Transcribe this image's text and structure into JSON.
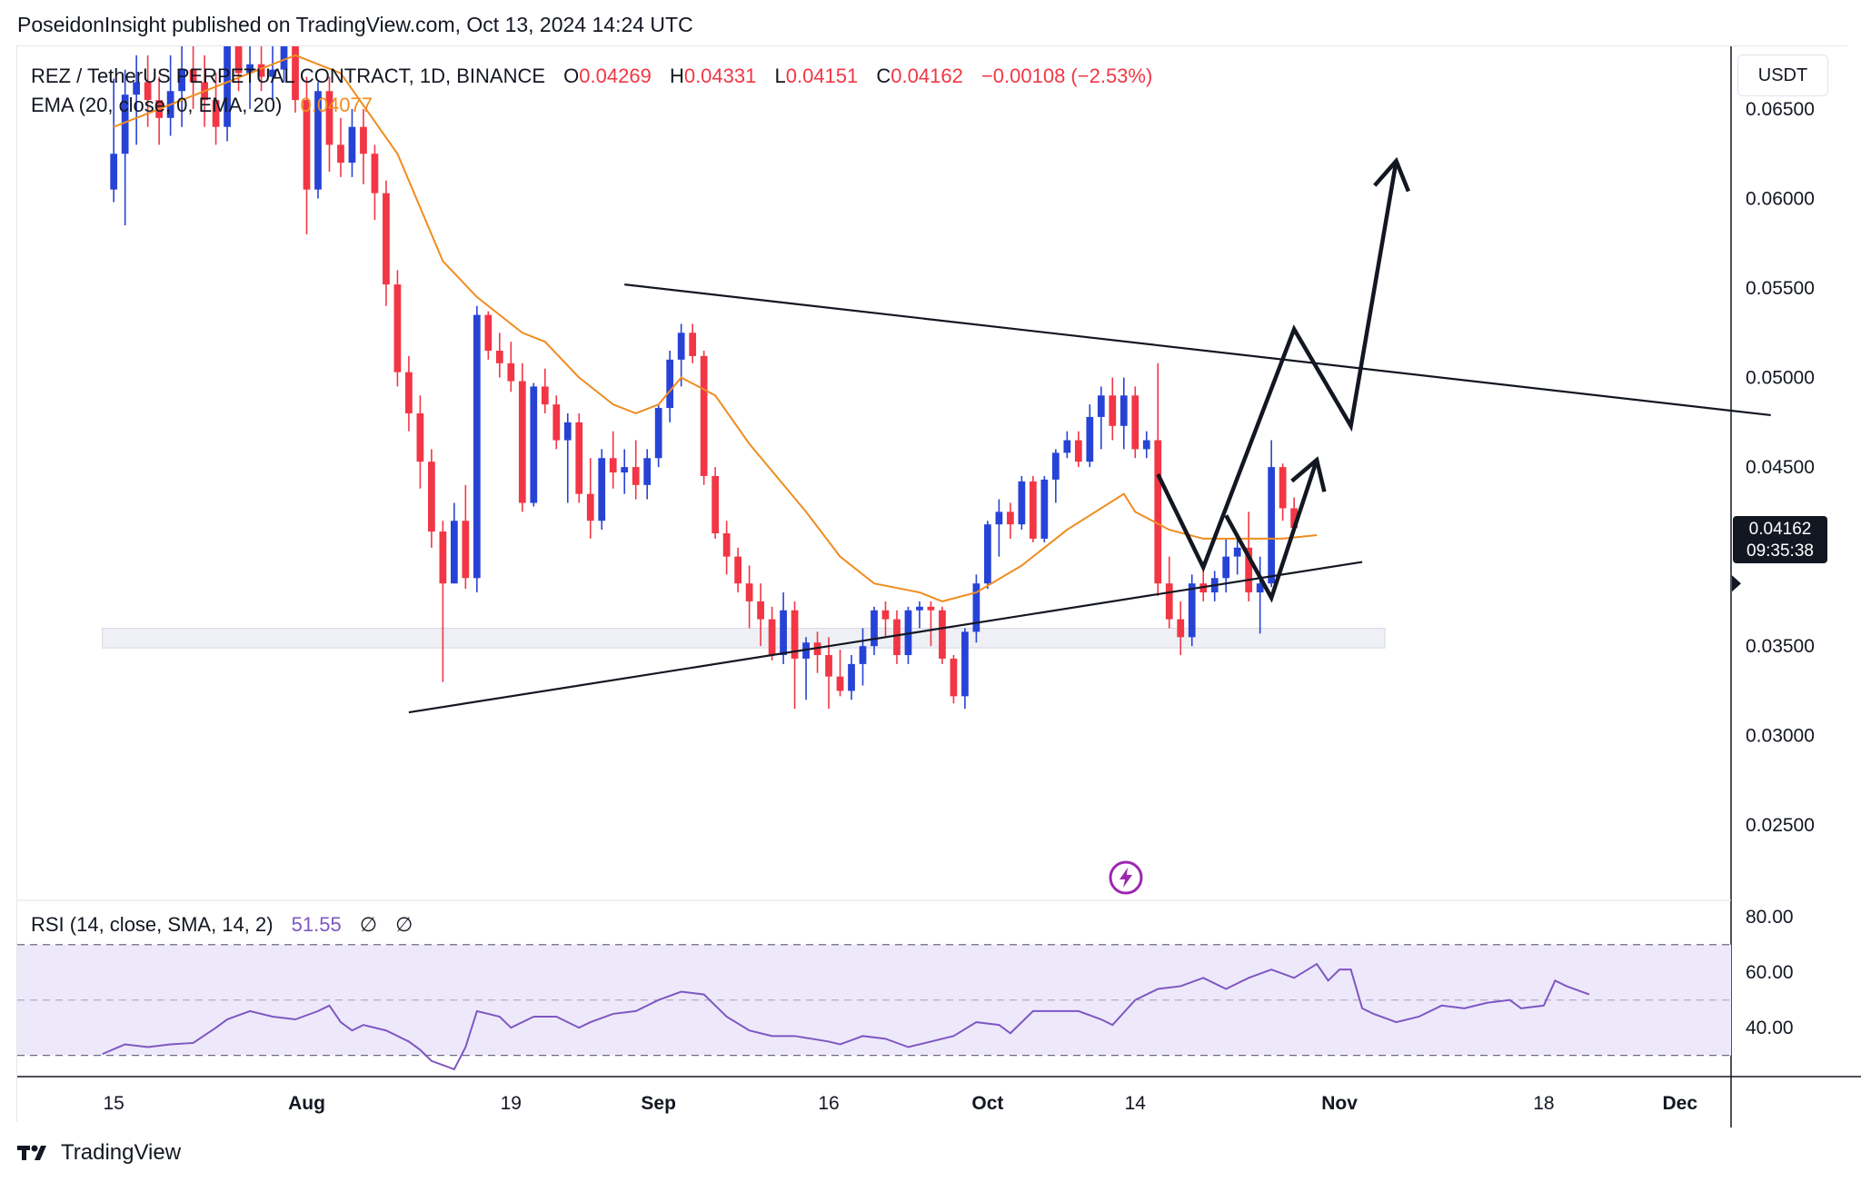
{
  "header": {
    "publisher": "PoseidonInsight published on TradingView.com, Oct 13, 2024 14:24 UTC"
  },
  "legend": {
    "symbol": "REZ / TetherUS PERPETUAL CONTRACT, 1D, BINANCE",
    "open_label": "O",
    "open": "0.04269",
    "high_label": "H",
    "high": "0.04331",
    "low_label": "L",
    "low": "0.04151",
    "close_label": "C",
    "close": "0.04162",
    "change": "−0.00108 (−2.53%)",
    "ema_label": "EMA (20, close, 0, EMA, 20)",
    "ema_value": "0.04077"
  },
  "rsi_legend": {
    "label": "RSI (14, close, SMA, 14, 2)",
    "value": "51.55",
    "extra1": "∅",
    "extra2": "∅"
  },
  "currency": "USDT",
  "price_tag": {
    "price": "0.04162",
    "countdown": "09:35:38"
  },
  "footer": {
    "brand": "TradingView"
  },
  "colors": {
    "up": "#2743d6",
    "down": "#f23645",
    "ema": "#f08c1f",
    "rsi": "#7e57c2",
    "rsi_band": "#ede9fb"
  },
  "icons": {
    "bolt": "lightning-bolt-icon",
    "logo": "tradingview-logo-icon"
  },
  "chart_data": {
    "type": "candlestick",
    "symbol": "REZ / TetherUS PERPETUAL CONTRACT",
    "interval": "1D",
    "exchange": "BINANCE",
    "price_axis": {
      "ticks": [
        "0.06500",
        "0.06000",
        "0.05500",
        "0.05000",
        "0.04500",
        "0.03500",
        "0.03000",
        "0.02500"
      ],
      "range": [
        0.0208,
        0.0685
      ]
    },
    "time_axis": {
      "ticks": [
        "15",
        "Aug",
        "19",
        "Sep",
        "16",
        "Oct",
        "14",
        "Nov",
        "18",
        "Dec"
      ],
      "positions": [
        0,
        17,
        35,
        48,
        63,
        77,
        90,
        108,
        126,
        138
      ],
      "x_range": [
        -8.5,
        142.5
      ]
    },
    "rsi_axis": {
      "ticks": [
        "80.00",
        "60.00",
        "40.00"
      ],
      "range": [
        23,
        85
      ],
      "bands": [
        30,
        70
      ],
      "mid": 50
    },
    "candles": [
      [
        0.0605,
        0.0667,
        0.0598,
        0.0625
      ],
      [
        0.0625,
        0.0672,
        0.0585,
        0.0658
      ],
      [
        0.0658,
        0.068,
        0.063,
        0.0665
      ],
      [
        0.0665,
        0.068,
        0.064,
        0.0655
      ],
      [
        0.0655,
        0.0668,
        0.063,
        0.0645
      ],
      [
        0.0645,
        0.068,
        0.0635,
        0.066
      ],
      [
        0.066,
        0.069,
        0.064,
        0.0672
      ],
      [
        0.0672,
        0.0685,
        0.065,
        0.0665
      ],
      [
        0.0665,
        0.068,
        0.064,
        0.0655
      ],
      [
        0.0655,
        0.067,
        0.063,
        0.064
      ],
      [
        0.064,
        0.069,
        0.0632,
        0.0685
      ],
      [
        0.0685,
        0.07,
        0.066,
        0.067
      ],
      [
        0.067,
        0.0688,
        0.065,
        0.0675
      ],
      [
        0.0675,
        0.069,
        0.066,
        0.0668
      ],
      [
        0.0668,
        0.069,
        0.0655,
        0.0672
      ],
      [
        0.0672,
        0.069,
        0.0665,
        0.0685
      ],
      [
        0.0685,
        0.0695,
        0.0648,
        0.0655
      ],
      [
        0.0655,
        0.0668,
        0.058,
        0.0605
      ],
      [
        0.0605,
        0.0665,
        0.06,
        0.066
      ],
      [
        0.066,
        0.0668,
        0.0615,
        0.063
      ],
      [
        0.063,
        0.0645,
        0.0612,
        0.062
      ],
      [
        0.062,
        0.065,
        0.0612,
        0.064
      ],
      [
        0.064,
        0.065,
        0.0608,
        0.0625
      ],
      [
        0.0625,
        0.063,
        0.0588,
        0.0603
      ],
      [
        0.0603,
        0.061,
        0.054,
        0.0552
      ],
      [
        0.0552,
        0.056,
        0.0495,
        0.0503
      ],
      [
        0.0503,
        0.0512,
        0.047,
        0.048
      ],
      [
        0.048,
        0.049,
        0.0438,
        0.0453
      ],
      [
        0.0453,
        0.046,
        0.0405,
        0.0414
      ],
      [
        0.0414,
        0.042,
        0.033,
        0.0385
      ],
      [
        0.0385,
        0.043,
        0.0385,
        0.042
      ],
      [
        0.042,
        0.044,
        0.0382,
        0.0388
      ],
      [
        0.0388,
        0.054,
        0.038,
        0.0535
      ],
      [
        0.0535,
        0.0537,
        0.051,
        0.0515
      ],
      [
        0.0515,
        0.0525,
        0.05,
        0.0508
      ],
      [
        0.0508,
        0.052,
        0.0492,
        0.0498
      ],
      [
        0.0498,
        0.0508,
        0.0425,
        0.043
      ],
      [
        0.043,
        0.0497,
        0.0428,
        0.0495
      ],
      [
        0.0495,
        0.0505,
        0.048,
        0.0485
      ],
      [
        0.0485,
        0.049,
        0.046,
        0.0465
      ],
      [
        0.0465,
        0.048,
        0.043,
        0.0475
      ],
      [
        0.0475,
        0.048,
        0.043,
        0.0435
      ],
      [
        0.0435,
        0.0455,
        0.041,
        0.042
      ],
      [
        0.042,
        0.046,
        0.0415,
        0.0455
      ],
      [
        0.0455,
        0.047,
        0.0438,
        0.0447
      ],
      [
        0.0447,
        0.046,
        0.0435,
        0.045
      ],
      [
        0.045,
        0.0465,
        0.0432,
        0.044
      ],
      [
        0.044,
        0.046,
        0.0432,
        0.0455
      ],
      [
        0.0455,
        0.0485,
        0.045,
        0.0483
      ],
      [
        0.0483,
        0.0515,
        0.0475,
        0.051
      ],
      [
        0.051,
        0.053,
        0.0495,
        0.0525
      ],
      [
        0.0525,
        0.053,
        0.0508,
        0.0512
      ],
      [
        0.0512,
        0.0515,
        0.044,
        0.0445
      ],
      [
        0.0445,
        0.045,
        0.041,
        0.0413
      ],
      [
        0.0413,
        0.042,
        0.039,
        0.04
      ],
      [
        0.04,
        0.0405,
        0.038,
        0.0385
      ],
      [
        0.0385,
        0.0395,
        0.036,
        0.0375
      ],
      [
        0.0375,
        0.0385,
        0.035,
        0.0365
      ],
      [
        0.0365,
        0.0372,
        0.0342,
        0.0345
      ],
      [
        0.0345,
        0.038,
        0.034,
        0.037
      ],
      [
        0.037,
        0.0375,
        0.0315,
        0.0343
      ],
      [
        0.0343,
        0.0355,
        0.032,
        0.0352
      ],
      [
        0.0352,
        0.0358,
        0.0335,
        0.0345
      ],
      [
        0.0345,
        0.0355,
        0.0315,
        0.0333
      ],
      [
        0.0333,
        0.0348,
        0.0322,
        0.0325
      ],
      [
        0.0325,
        0.0345,
        0.032,
        0.034
      ],
      [
        0.034,
        0.036,
        0.0328,
        0.035
      ],
      [
        0.035,
        0.0372,
        0.0345,
        0.037
      ],
      [
        0.037,
        0.0375,
        0.0355,
        0.0365
      ],
      [
        0.0365,
        0.037,
        0.034,
        0.0345
      ],
      [
        0.0345,
        0.0372,
        0.034,
        0.037
      ],
      [
        0.037,
        0.0375,
        0.036,
        0.0372
      ],
      [
        0.0372,
        0.0375,
        0.035,
        0.037
      ],
      [
        0.037,
        0.0372,
        0.034,
        0.0343
      ],
      [
        0.0343,
        0.0345,
        0.0318,
        0.0322
      ],
      [
        0.0322,
        0.036,
        0.0315,
        0.0358
      ],
      [
        0.0358,
        0.039,
        0.0352,
        0.0385
      ],
      [
        0.0385,
        0.042,
        0.0382,
        0.0418
      ],
      [
        0.0418,
        0.0432,
        0.04,
        0.0425
      ],
      [
        0.0425,
        0.043,
        0.041,
        0.0418
      ],
      [
        0.0418,
        0.0445,
        0.0415,
        0.0442
      ],
      [
        0.0442,
        0.0445,
        0.0408,
        0.041
      ],
      [
        0.041,
        0.0445,
        0.0408,
        0.0443
      ],
      [
        0.0443,
        0.046,
        0.043,
        0.0458
      ],
      [
        0.0458,
        0.047,
        0.0455,
        0.0465
      ],
      [
        0.0465,
        0.047,
        0.045,
        0.0453
      ],
      [
        0.0453,
        0.0485,
        0.045,
        0.0478
      ],
      [
        0.0478,
        0.0495,
        0.046,
        0.049
      ],
      [
        0.049,
        0.05,
        0.0465,
        0.0473
      ],
      [
        0.0473,
        0.05,
        0.046,
        0.049
      ],
      [
        0.049,
        0.0495,
        0.0455,
        0.046
      ],
      [
        0.046,
        0.047,
        0.0455,
        0.0465
      ],
      [
        0.0465,
        0.0508,
        0.0378,
        0.0385
      ],
      [
        0.0385,
        0.04,
        0.036,
        0.0365
      ],
      [
        0.0365,
        0.0375,
        0.0345,
        0.0355
      ],
      [
        0.0355,
        0.039,
        0.035,
        0.0385
      ],
      [
        0.0385,
        0.0395,
        0.0375,
        0.038
      ],
      [
        0.038,
        0.0392,
        0.0375,
        0.0388
      ],
      [
        0.0388,
        0.041,
        0.038,
        0.04
      ],
      [
        0.04,
        0.041,
        0.039,
        0.0405
      ],
      [
        0.0405,
        0.0425,
        0.0375,
        0.038
      ],
      [
        0.038,
        0.04,
        0.0357,
        0.0385
      ],
      [
        0.0385,
        0.0465,
        0.0383,
        0.045
      ],
      [
        0.045,
        0.0452,
        0.042,
        0.0427
      ],
      [
        0.0427,
        0.0433,
        0.0415,
        0.0416
      ]
    ],
    "ema20": [
      [
        0,
        0.064
      ],
      [
        10,
        0.0665
      ],
      [
        16,
        0.068
      ],
      [
        20,
        0.067
      ],
      [
        25,
        0.0625
      ],
      [
        29,
        0.0565
      ],
      [
        32,
        0.0545
      ],
      [
        36,
        0.0525
      ],
      [
        38,
        0.052
      ],
      [
        41,
        0.05
      ],
      [
        44,
        0.0485
      ],
      [
        46,
        0.048
      ],
      [
        48,
        0.0485
      ],
      [
        50,
        0.05
      ],
      [
        53,
        0.049
      ],
      [
        56,
        0.0463
      ],
      [
        61,
        0.0425
      ],
      [
        64,
        0.04
      ],
      [
        67,
        0.0385
      ],
      [
        71,
        0.038
      ],
      [
        73,
        0.0375
      ],
      [
        76,
        0.038
      ],
      [
        80,
        0.0395
      ],
      [
        84,
        0.0415
      ],
      [
        89,
        0.0435
      ],
      [
        90,
        0.0425
      ],
      [
        93,
        0.0415
      ],
      [
        96,
        0.041
      ],
      [
        99,
        0.041
      ],
      [
        103,
        0.041
      ],
      [
        106,
        0.0412
      ]
    ],
    "rsi": [
      [
        -1,
        30.5
      ],
      [
        1,
        34
      ],
      [
        3,
        33
      ],
      [
        5,
        34
      ],
      [
        7,
        34.5
      ],
      [
        9,
        40
      ],
      [
        10,
        43
      ],
      [
        12,
        46
      ],
      [
        14,
        44
      ],
      [
        16,
        43
      ],
      [
        18,
        46
      ],
      [
        19,
        48
      ],
      [
        20,
        42
      ],
      [
        21,
        39
      ],
      [
        22,
        41
      ],
      [
        24,
        39
      ],
      [
        26,
        35
      ],
      [
        27,
        32
      ],
      [
        28,
        28
      ],
      [
        30,
        25
      ],
      [
        31,
        33
      ],
      [
        32,
        46
      ],
      [
        34,
        44
      ],
      [
        35,
        40
      ],
      [
        37,
        44
      ],
      [
        39,
        44
      ],
      [
        41,
        40
      ],
      [
        42,
        42
      ],
      [
        44,
        45
      ],
      [
        46,
        46
      ],
      [
        48,
        50
      ],
      [
        50,
        53
      ],
      [
        52,
        52
      ],
      [
        54,
        44
      ],
      [
        56,
        39
      ],
      [
        58,
        37
      ],
      [
        60,
        37
      ],
      [
        63,
        35
      ],
      [
        64,
        34
      ],
      [
        66,
        37
      ],
      [
        68,
        36
      ],
      [
        70,
        33
      ],
      [
        72,
        35
      ],
      [
        74,
        37
      ],
      [
        76,
        42
      ],
      [
        78,
        41
      ],
      [
        79,
        38
      ],
      [
        81,
        46
      ],
      [
        83,
        46
      ],
      [
        85,
        46
      ],
      [
        87,
        43
      ],
      [
        88,
        41
      ],
      [
        90,
        50
      ],
      [
        92,
        54
      ],
      [
        94,
        55
      ],
      [
        96,
        58
      ],
      [
        98,
        54
      ],
      [
        100,
        58
      ],
      [
        102,
        61
      ],
      [
        104,
        58
      ],
      [
        106,
        63
      ],
      [
        107,
        57
      ],
      [
        108,
        61
      ],
      [
        109,
        61
      ],
      [
        110,
        47
      ],
      [
        111,
        45
      ],
      [
        113,
        42
      ],
      [
        115,
        44
      ],
      [
        117,
        48
      ],
      [
        119,
        47
      ],
      [
        121,
        49
      ],
      [
        123,
        50
      ],
      [
        124,
        47
      ],
      [
        126,
        48
      ],
      [
        127,
        57
      ],
      [
        128,
        55
      ],
      [
        130,
        52
      ]
    ],
    "annotations": {
      "trend_lines": [
        [
          [
            45,
            0.0552
          ],
          [
            146,
            0.0479
          ]
        ],
        [
          [
            26,
            0.0313
          ],
          [
            110,
            0.0397
          ]
        ]
      ],
      "support_zone": {
        "x": [
          -1,
          112
        ],
        "y": [
          0.0349,
          0.036
        ]
      },
      "projection_path": [
        [
          92,
          0.0446
        ],
        [
          96,
          0.0394
        ],
        [
          104,
          0.0527
        ],
        [
          109,
          0.0473
        ],
        [
          113,
          0.0621
        ]
      ],
      "projection_path_2": [
        [
          98,
          0.0423
        ],
        [
          102,
          0.0377
        ],
        [
          106,
          0.0454
        ]
      ]
    }
  }
}
